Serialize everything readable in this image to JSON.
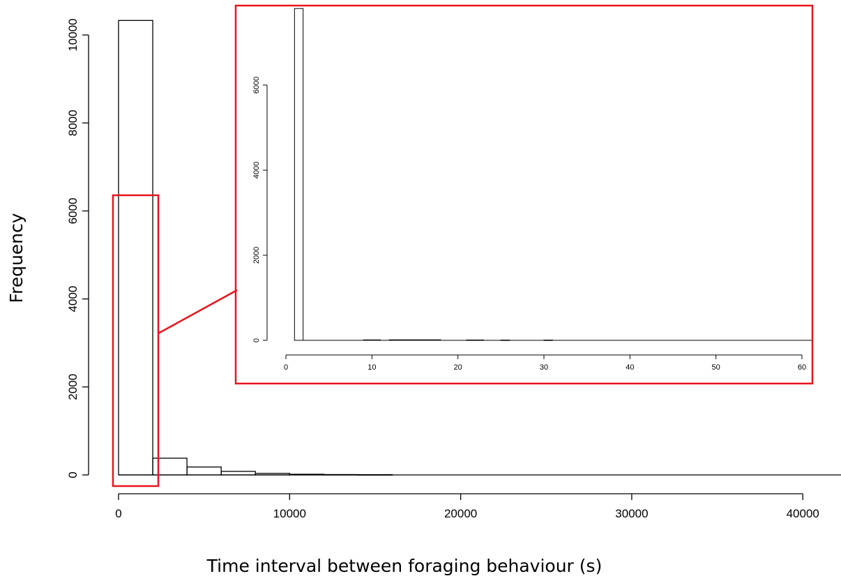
{
  "chart_data": [
    {
      "type": "bar",
      "xlabel": "Time interval between foraging behaviour (s)",
      "ylabel": "Frequency",
      "xlim": [
        0,
        42000
      ],
      "ylim": [
        0,
        10500
      ],
      "x_ticks": [
        "0",
        "10000",
        "20000",
        "30000",
        "40000"
      ],
      "y_ticks": [
        "0",
        "2000",
        "4000",
        "6000",
        "8000",
        "10000"
      ],
      "bins": [
        {
          "x0": 0,
          "x1": 2000,
          "count": 10330
        },
        {
          "x0": 2000,
          "x1": 4000,
          "count": 380
        },
        {
          "x0": 4000,
          "x1": 6000,
          "count": 180
        },
        {
          "x0": 6000,
          "x1": 8000,
          "count": 80
        },
        {
          "x0": 8000,
          "x1": 10000,
          "count": 35
        },
        {
          "x0": 10000,
          "x1": 12000,
          "count": 15
        },
        {
          "x0": 12000,
          "x1": 14000,
          "count": 8
        },
        {
          "x0": 14000,
          "x1": 16000,
          "count": 5
        }
      ]
    },
    {
      "type": "bar",
      "role": "inset",
      "xlim": [
        0,
        60
      ],
      "ylim": [
        0,
        7000
      ],
      "x_ticks": [
        "0",
        "10",
        "20",
        "30",
        "40",
        "50",
        "60"
      ],
      "y_ticks": [
        "0",
        "2000",
        "4000",
        "6000"
      ],
      "bins": [
        {
          "x0": 1,
          "x1": 2,
          "count": 7800
        },
        {
          "x0": 9,
          "x1": 11,
          "count": 10
        },
        {
          "x0": 12,
          "x1": 18,
          "count": 12
        },
        {
          "x0": 21,
          "x1": 23,
          "count": 8
        },
        {
          "x0": 25,
          "x1": 26,
          "count": 6
        },
        {
          "x0": 30,
          "x1": 31,
          "count": 6
        }
      ]
    }
  ],
  "colors": {
    "bar_stroke": "#000000",
    "highlight": "#e8141c"
  }
}
